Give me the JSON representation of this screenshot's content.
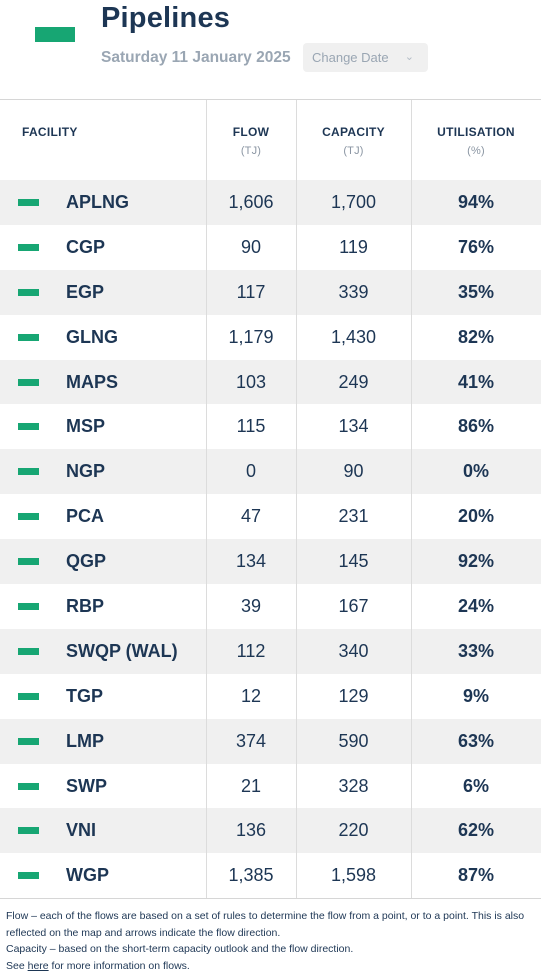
{
  "header": {
    "title": "Pipelines",
    "date": "Saturday 11 January 2025",
    "change_date_label": "Change Date",
    "legend_color": "#17a673"
  },
  "columns": {
    "facility": "FACILITY",
    "flow": "FLOW",
    "flow_unit": "(TJ)",
    "capacity": "CAPACITY",
    "capacity_unit": "(TJ)",
    "utilisation": "UTILISATION",
    "utilisation_unit": "(%)"
  },
  "rows": [
    {
      "facility": "APLNG",
      "flow": "1,606",
      "capacity": "1,700",
      "utilisation": "94%"
    },
    {
      "facility": "CGP",
      "flow": "90",
      "capacity": "119",
      "utilisation": "76%"
    },
    {
      "facility": "EGP",
      "flow": "117",
      "capacity": "339",
      "utilisation": "35%"
    },
    {
      "facility": "GLNG",
      "flow": "1,179",
      "capacity": "1,430",
      "utilisation": "82%"
    },
    {
      "facility": "MAPS",
      "flow": "103",
      "capacity": "249",
      "utilisation": "41%"
    },
    {
      "facility": "MSP",
      "flow": "115",
      "capacity": "134",
      "utilisation": "86%"
    },
    {
      "facility": "NGP",
      "flow": "0",
      "capacity": "90",
      "utilisation": "0%"
    },
    {
      "facility": "PCA",
      "flow": "47",
      "capacity": "231",
      "utilisation": "20%"
    },
    {
      "facility": "QGP",
      "flow": "134",
      "capacity": "145",
      "utilisation": "92%"
    },
    {
      "facility": "RBP",
      "flow": "39",
      "capacity": "167",
      "utilisation": "24%"
    },
    {
      "facility": "SWQP (WAL)",
      "flow": "112",
      "capacity": "340",
      "utilisation": "33%"
    },
    {
      "facility": "TGP",
      "flow": "12",
      "capacity": "129",
      "utilisation": "9%"
    },
    {
      "facility": "LMP",
      "flow": "374",
      "capacity": "590",
      "utilisation": "63%"
    },
    {
      "facility": "SWP",
      "flow": "21",
      "capacity": "328",
      "utilisation": "6%"
    },
    {
      "facility": "VNI",
      "flow": "136",
      "capacity": "220",
      "utilisation": "62%"
    },
    {
      "facility": "WGP",
      "flow": "1,385",
      "capacity": "1,598",
      "utilisation": "87%"
    }
  ],
  "footnotes": {
    "flow_note": "Flow – each of the flows are based on a set of rules to determine the flow from a point, or to a point. This is also reflected on the map and arrows indicate the flow direction.",
    "capacity_note": "Capacity – based on the short-term capacity outlook and the flow direction.",
    "see_prefix": "See ",
    "see_link": "here",
    "see_suffix": " for more information on flows."
  }
}
